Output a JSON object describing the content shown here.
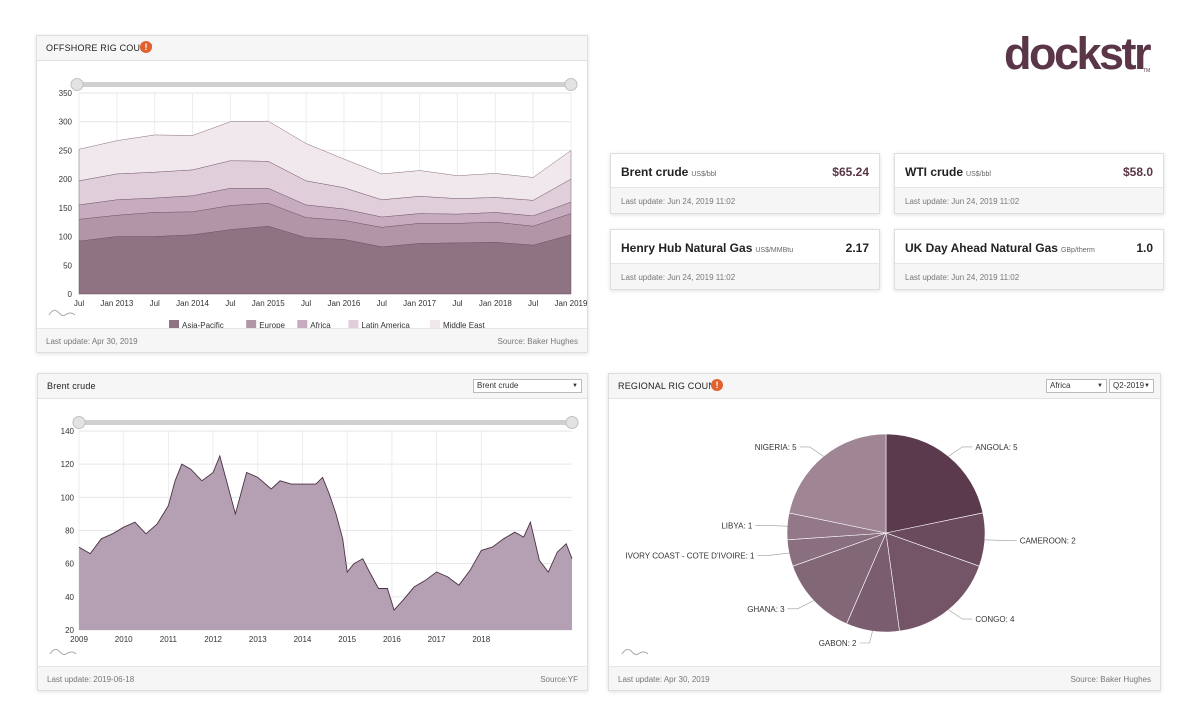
{
  "brand": {
    "logo_text": "dockstr",
    "trademark": "TM",
    "color": "#5a3648"
  },
  "offshore": {
    "title": "OFFSHORE RIG COUNT",
    "info_label": "!",
    "last_update": "Last update: Apr 30, 2019",
    "source": "Source: Baker Hughes",
    "chart_data": {
      "type": "area",
      "stacked": true,
      "x_ticks": [
        "Jul",
        "Jan 2013",
        "Jul",
        "Jan 2014",
        "Jul",
        "Jan 2015",
        "Jul",
        "Jan 2016",
        "Jul",
        "Jan 2017",
        "Jul",
        "Jan 2018",
        "Jul",
        "Jan 2019"
      ],
      "y_ticks": [
        0,
        50,
        100,
        150,
        200,
        250,
        300,
        350
      ],
      "ylim": [
        0,
        350
      ],
      "x": [
        0,
        1,
        2,
        3,
        4,
        5,
        6,
        7,
        8,
        9,
        10,
        11,
        12,
        13
      ],
      "series": [
        {
          "name": "Asia-Pacific",
          "color": "#8e7383",
          "values": [
            92,
            100,
            100,
            103,
            112,
            118,
            98,
            95,
            82,
            88,
            89,
            90,
            85,
            103
          ]
        },
        {
          "name": "Europe",
          "color": "#b296a8",
          "values": [
            38,
            37,
            42,
            40,
            42,
            40,
            35,
            33,
            34,
            35,
            34,
            35,
            33,
            37
          ]
        },
        {
          "name": "Africa",
          "color": "#c7acc0",
          "values": [
            25,
            27,
            25,
            28,
            30,
            26,
            22,
            20,
            18,
            17,
            16,
            17,
            18,
            20
          ]
        },
        {
          "name": "Latin America",
          "color": "#e0cfdb",
          "values": [
            42,
            45,
            45,
            45,
            48,
            47,
            42,
            37,
            30,
            30,
            27,
            26,
            27,
            40
          ]
        },
        {
          "name": "Middle East",
          "color": "#f1e8ee",
          "values": [
            55,
            58,
            65,
            60,
            68,
            70,
            65,
            50,
            45,
            45,
            40,
            42,
            40,
            50
          ]
        }
      ]
    }
  },
  "cards": [
    {
      "name": "Brent crude",
      "unit": "US$/bbl",
      "value": "$65.24",
      "last_update": "Last update: Jun 24, 2019 11:02"
    },
    {
      "name": "WTI crude",
      "unit": "US$/bbl",
      "value": "$58.0",
      "last_update": "Last update: Jun 24, 2019 11:02"
    },
    {
      "name": "Henry Hub Natural Gas",
      "unit": "US$/MMBtu",
      "value": "2.17",
      "last_update": "Last update: Jun 24, 2019 11:02"
    },
    {
      "name": "UK Day Ahead Natural Gas",
      "unit": "GBp/therm",
      "value": "1.0",
      "last_update": "Last update: Jun 24, 2019 11:02"
    }
  ],
  "brent": {
    "title": "Brent crude",
    "select_value": "Brent crude",
    "last_update": "Last update: 2019-06-18",
    "source": "Source:YF",
    "chart_data": {
      "type": "area",
      "color": "#b59fb3",
      "line_color": "#4a3344",
      "x_ticks": [
        "2009",
        "2010",
        "2011",
        "2012",
        "2013",
        "2014",
        "2015",
        "2016",
        "2017",
        "2018"
      ],
      "y_ticks": [
        20,
        40,
        60,
        80,
        100,
        120,
        140
      ],
      "ylim": [
        20,
        140
      ],
      "xlim": [
        2009,
        2020.03
      ],
      "x": [
        2009.0,
        2009.25,
        2009.5,
        2009.75,
        2010.0,
        2010.25,
        2010.5,
        2010.75,
        2011.0,
        2011.15,
        2011.3,
        2011.5,
        2011.75,
        2012.0,
        2012.15,
        2012.3,
        2012.5,
        2012.75,
        2013.0,
        2013.3,
        2013.5,
        2013.75,
        2014.0,
        2014.3,
        2014.45,
        2014.6,
        2014.75,
        2014.9,
        2015.0,
        2015.15,
        2015.35,
        2015.5,
        2015.7,
        2015.9,
        2016.05,
        2016.25,
        2016.5,
        2016.75,
        2017.0,
        2017.25,
        2017.5,
        2017.75,
        2018.0,
        2018.25,
        2018.5,
        2018.75,
        2018.95,
        2019.1,
        2019.3,
        2019.5,
        2019.7,
        2019.9,
        2020.03
      ],
      "y": [
        70,
        66,
        75,
        78,
        82,
        85,
        78,
        84,
        95,
        110,
        120,
        117,
        110,
        115,
        125,
        110,
        90,
        115,
        112,
        105,
        110,
        108,
        108,
        108,
        112,
        102,
        90,
        75,
        55,
        60,
        63,
        55,
        45,
        45,
        32,
        38,
        46,
        50,
        55,
        52,
        47,
        56,
        68,
        70,
        75,
        79,
        76,
        85,
        62,
        55,
        67,
        72,
        63
      ]
    }
  },
  "regional": {
    "title": "REGIONAL RIG COUNT",
    "info_label": "!",
    "region_select": "Africa",
    "quarter_select": "Q2-2019",
    "last_update": "Last update: Apr 30, 2019",
    "source": "Source: Baker Hughes",
    "chart_data": {
      "type": "pie",
      "labels": [
        "ANGOLA: 5",
        "CAMEROON: 2",
        "CONGO: 4",
        "GABON: 2",
        "GHANA: 3",
        "IVORY COAST - COTE D'IVOIRE: 1",
        "LIBYA: 1",
        "NIGERIA: 5"
      ],
      "categories": [
        "ANGOLA",
        "CAMEROON",
        "CONGO",
        "GABON",
        "GHANA",
        "IVORY COAST - COTE D'IVOIRE",
        "LIBYA",
        "NIGERIA"
      ],
      "values": [
        5,
        2,
        4,
        2,
        3,
        1,
        1,
        5
      ],
      "colors": [
        "#5b3a4d",
        "#6a4a5d",
        "#735567",
        "#7a5e70",
        "#826777",
        "#8a6f80",
        "#927888",
        "#a08595"
      ]
    }
  }
}
